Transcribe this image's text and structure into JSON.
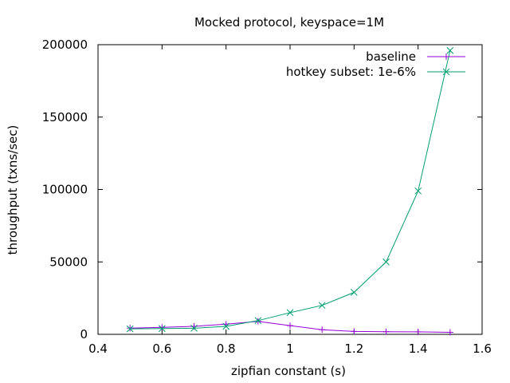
{
  "chart_data": {
    "type": "line",
    "title": "Mocked protocol, keyspace=1M",
    "xlabel": "zipfian constant (s)",
    "ylabel": "throughput (txns/sec)",
    "xlim": [
      0.4,
      1.6
    ],
    "ylim": [
      0,
      200000
    ],
    "x_ticks": [
      0.4,
      0.6,
      0.8,
      1,
      1.2,
      1.4,
      1.6
    ],
    "y_ticks": [
      0,
      50000,
      100000,
      150000,
      200000
    ],
    "grid": false,
    "legend_position": "top-right",
    "series": [
      {
        "name": "baseline",
        "color": "#9400d3",
        "marker": "plus",
        "x": [
          0.5,
          0.6,
          0.7,
          0.8,
          0.9,
          1.0,
          1.1,
          1.2,
          1.3,
          1.4,
          1.5
        ],
        "y": [
          4300,
          4800,
          5500,
          7000,
          9000,
          6000,
          3200,
          2000,
          1800,
          1700,
          1400
        ]
      },
      {
        "name": "hotkey subset: 1e-6%",
        "color": "#009e73",
        "marker": "cross",
        "x": [
          0.5,
          0.6,
          0.7,
          0.8,
          0.9,
          1.0,
          1.1,
          1.2,
          1.3,
          1.4,
          1.5
        ],
        "y": [
          3800,
          4000,
          4200,
          5500,
          9500,
          15000,
          20000,
          29000,
          50000,
          99000,
          196000
        ]
      }
    ]
  }
}
